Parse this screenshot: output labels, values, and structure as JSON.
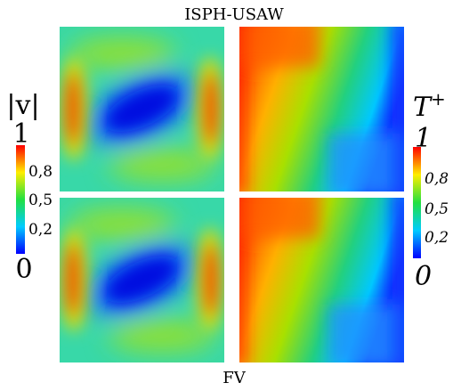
{
  "title": "ISPH-USAW",
  "bottom_label": "FV",
  "velocity_colorbar": {
    "label": "|v|",
    "ticks": [
      "1",
      "0,8",
      "0,5",
      "0,2",
      "0"
    ]
  },
  "temperature_colorbar": {
    "label": {
      "base": "T",
      "sup": "+"
    },
    "ticks": [
      "1",
      "0,8",
      "0,5",
      "0,2",
      "0"
    ]
  }
}
